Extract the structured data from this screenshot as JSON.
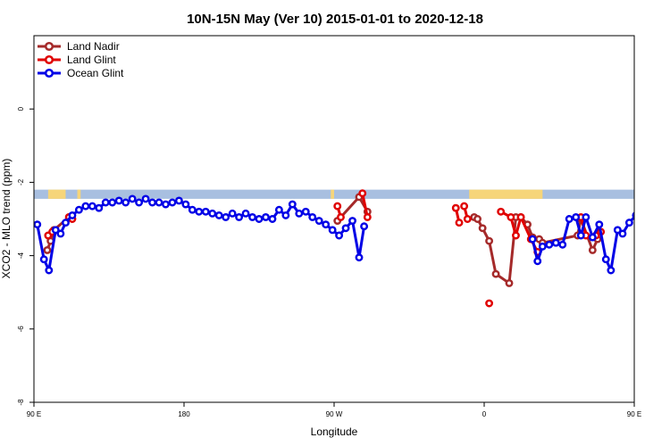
{
  "chart_data": {
    "type": "line",
    "title": "10N-15N May (Ver 10)   2015-01-01 to 2020-12-18",
    "xlabel": "Longitude",
    "ylabel": "XCO2 - MLO trend (ppm)",
    "xlim": [
      90,
      450
    ],
    "ylim": [
      -8,
      2
    ],
    "x_ticks": [
      {
        "value": 90,
        "label": "90 E"
      },
      {
        "value": 180,
        "label": "180"
      },
      {
        "value": 270,
        "label": "90 W"
      },
      {
        "value": 360,
        "label": "0"
      },
      {
        "value": 450,
        "label": "90 E"
      },
      {
        "value": 540,
        "label": "180"
      }
    ],
    "y_ticks": [
      {
        "value": 0,
        "label": "0"
      },
      {
        "value": -2,
        "label": "-2"
      },
      {
        "value": -4,
        "label": "-4"
      },
      {
        "value": -6,
        "label": "-6"
      },
      {
        "value": -8,
        "label": "-8"
      }
    ],
    "legend_position": "top-left",
    "land_band": {
      "y_range": [
        -2.45,
        -2.2
      ],
      "ocean_color": "#a8bfe0",
      "land_color": "#f6d57a",
      "land_segments": [
        [
          98.5,
          109
        ],
        [
          116,
          118
        ],
        [
          268,
          270
        ],
        [
          351,
          395
        ],
        [
          453,
          457
        ],
        [
          466,
          474
        ],
        [
          493,
          495
        ]
      ]
    },
    "series": [
      {
        "name": "Land Nadir",
        "color": "#a52a2a",
        "points": [
          [
            98,
            -3.85
          ],
          [
            100,
            -3.6
          ],
          [
            102,
            -3.3
          ],
          [
            111,
            -2.95
          ],
          [
            272,
            -3.05
          ],
          [
            285,
            -2.4
          ],
          [
            290,
            -2.8
          ],
          [
            354,
            -2.95
          ],
          [
            356,
            -3.0
          ],
          [
            359,
            -3.25
          ],
          [
            363,
            -3.6
          ],
          [
            367,
            -4.5
          ],
          [
            375,
            -4.75
          ],
          [
            379,
            -2.95
          ],
          [
            382,
            -2.95
          ],
          [
            386,
            -3.15
          ],
          [
            389,
            -3.5
          ],
          [
            393,
            -3.55
          ],
          [
            395,
            -3.65
          ],
          [
            416,
            -3.45
          ],
          [
            418,
            -3.0
          ],
          [
            425,
            -3.85
          ],
          [
            428,
            -3.55
          ]
        ]
      },
      {
        "name": "Land Glint",
        "color": "#e00000",
        "segments": [
          [
            [
              98.5,
              -3.45
            ],
            [
              101,
              -3.35
            ]
          ],
          [
            [
              111,
              -2.95
            ],
            [
              113,
              -3.0
            ]
          ],
          [
            [
              272,
              -2.65
            ],
            [
              274,
              -2.95
            ]
          ],
          [
            [
              287,
              -2.3
            ],
            [
              290,
              -2.95
            ]
          ],
          [
            [
              343,
              -2.7
            ],
            [
              345,
              -3.1
            ]
          ],
          [
            [
              348,
              -2.65
            ],
            [
              350,
              -3.0
            ]
          ],
          [
            [
              363,
              -5.3
            ]
          ],
          [
            [
              370,
              -2.8
            ],
            [
              376,
              -2.95
            ],
            [
              379,
              -3.45
            ],
            [
              382,
              -2.95
            ],
            [
              388,
              -3.55
            ],
            [
              392,
              -3.9
            ]
          ],
          [
            [
              418,
              -2.95
            ],
            [
              421,
              -3.45
            ]
          ],
          [
            [
              427,
              -3.45
            ],
            [
              430,
              -3.35
            ]
          ]
        ]
      },
      {
        "name": "Ocean Glint",
        "color": "#0000e6",
        "points": [
          [
            92,
            -3.15
          ],
          [
            96,
            -4.1
          ],
          [
            99,
            -4.4
          ],
          [
            103,
            -3.3
          ],
          [
            106,
            -3.4
          ],
          [
            109,
            -3.1
          ],
          [
            113,
            -2.9
          ],
          [
            117,
            -2.75
          ],
          [
            121,
            -2.65
          ],
          [
            125,
            -2.65
          ],
          [
            129,
            -2.7
          ],
          [
            133,
            -2.55
          ],
          [
            137,
            -2.55
          ],
          [
            141,
            -2.5
          ],
          [
            145,
            -2.55
          ],
          [
            149,
            -2.45
          ],
          [
            153,
            -2.55
          ],
          [
            157,
            -2.45
          ],
          [
            161,
            -2.55
          ],
          [
            165,
            -2.55
          ],
          [
            169,
            -2.6
          ],
          [
            173,
            -2.55
          ],
          [
            177,
            -2.5
          ],
          [
            181,
            -2.6
          ],
          [
            185,
            -2.75
          ],
          [
            189,
            -2.8
          ],
          [
            193,
            -2.8
          ],
          [
            197,
            -2.85
          ],
          [
            201,
            -2.9
          ],
          [
            205,
            -2.95
          ],
          [
            209,
            -2.85
          ],
          [
            213,
            -2.95
          ],
          [
            217,
            -2.85
          ],
          [
            221,
            -2.95
          ],
          [
            225,
            -3.0
          ],
          [
            229,
            -2.95
          ],
          [
            233,
            -3.0
          ],
          [
            237,
            -2.75
          ],
          [
            241,
            -2.9
          ],
          [
            245,
            -2.6
          ],
          [
            249,
            -2.85
          ],
          [
            253,
            -2.8
          ],
          [
            257,
            -2.95
          ],
          [
            261,
            -3.05
          ],
          [
            265,
            -3.15
          ],
          [
            269,
            -3.3
          ],
          [
            273,
            -3.45
          ],
          [
            277,
            -3.25
          ],
          [
            281,
            -3.05
          ],
          [
            285,
            -4.05
          ],
          [
            288,
            -3.2
          ],
          [
            389,
            -3.55
          ],
          [
            392,
            -4.15
          ],
          [
            395,
            -3.75
          ],
          [
            399,
            -3.7
          ],
          [
            403,
            -3.65
          ],
          [
            407,
            -3.7
          ],
          [
            411,
            -3.0
          ],
          [
            415,
            -2.95
          ],
          [
            418,
            -3.45
          ],
          [
            421,
            -2.95
          ],
          [
            425,
            -3.5
          ],
          [
            429,
            -3.15
          ],
          [
            433,
            -4.1
          ],
          [
            436,
            -4.4
          ],
          [
            440,
            -3.3
          ],
          [
            443,
            -3.4
          ],
          [
            447,
            -3.1
          ],
          [
            451,
            -2.9
          ],
          [
            455,
            -2.75
          ],
          [
            459,
            -2.6
          ],
          [
            463,
            -2.65
          ],
          [
            467,
            -2.65
          ],
          [
            471,
            -2.7
          ],
          [
            475,
            -2.55
          ],
          [
            479,
            -2.55
          ],
          [
            483,
            -2.5
          ],
          [
            487,
            -2.55
          ],
          [
            491,
            -2.45
          ],
          [
            495,
            -2.6
          ]
        ]
      }
    ]
  }
}
